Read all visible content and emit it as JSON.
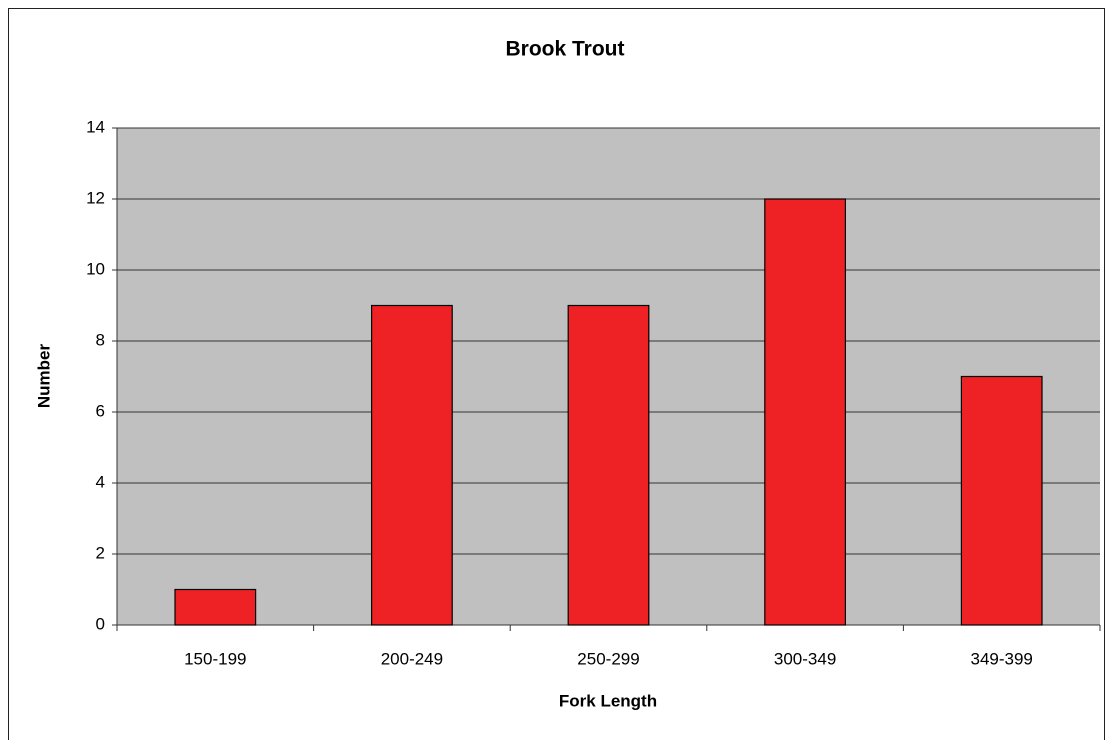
{
  "chart_data": {
    "type": "bar",
    "title": "Brook Trout",
    "x_label": "Fork Length",
    "y_label": "Number",
    "categories": [
      "150-199",
      "200-249",
      "250-299",
      "300-349",
      "349-399"
    ],
    "values": [
      1,
      9,
      9,
      12,
      7
    ],
    "color": "#ee2224",
    "ylim": [
      0,
      14
    ],
    "yticks": [
      0,
      2,
      4,
      6,
      8,
      10,
      12,
      14
    ],
    "grid": true
  }
}
